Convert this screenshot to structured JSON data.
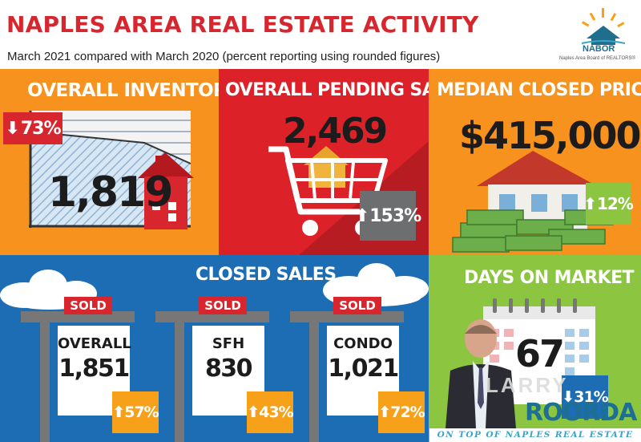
{
  "header": {
    "title": "NAPLES AREA REAL ESTATE ACTIVITY",
    "subtitle": "March 2021 compared with March 2020 (percent reporting using rounded figures)",
    "logo_name": "NABOR",
    "logo_sub": "Naples Area Board of REALTORS®"
  },
  "inventory": {
    "title": "OVERALL INVENTORY",
    "value": "1,819",
    "change": "73%",
    "direction": "down",
    "badge_color": "#d8262f"
  },
  "pending": {
    "title": "OVERALL PENDING SALES",
    "value": "2,469",
    "change": "153%",
    "direction": "up",
    "badge_color": "#6d6e70"
  },
  "median": {
    "title": "MEDIAN CLOSED PRICE",
    "value": "$415,000",
    "change": "12%",
    "direction": "up",
    "badge_color": "#8cc540"
  },
  "closed": {
    "title": "CLOSED SALES",
    "sold_label": "SOLD",
    "signs": [
      {
        "label": "OVERALL",
        "value": "1,851",
        "change": "57%"
      },
      {
        "label": "SFH",
        "value": "830",
        "change": "43%"
      },
      {
        "label": "CONDO",
        "value": "1,021",
        "change": "72%"
      }
    ],
    "badge_color": "#f7a11a"
  },
  "days": {
    "title": "DAYS ON MARKET",
    "value": "67",
    "change": "31%",
    "direction": "down",
    "badge_color": "#1c6db3"
  },
  "agent": {
    "first": "LARRY",
    "last": "ROORDA",
    "tagline": "ON TOP OF NAPLES REAL ESTATE"
  },
  "colors": {
    "red": "#d8262f",
    "orange": "#f7921e",
    "blue": "#1c6db3",
    "green": "#8cc540"
  }
}
